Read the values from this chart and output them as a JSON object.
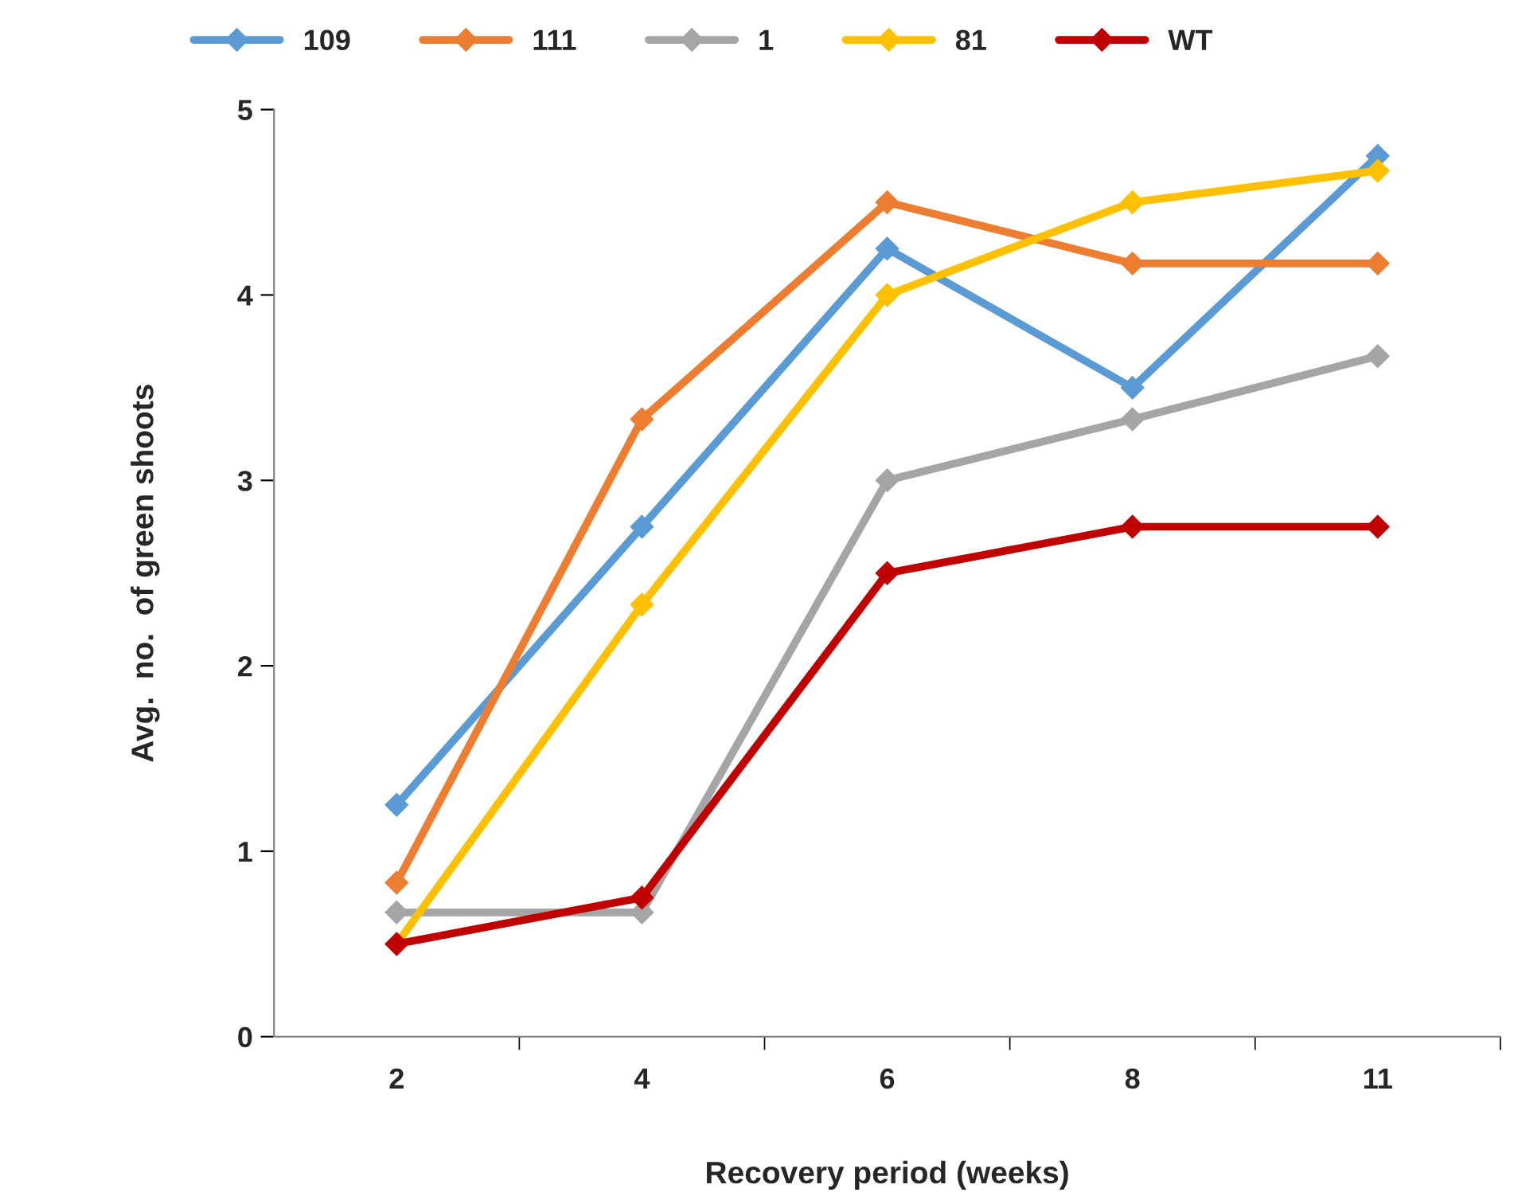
{
  "chart_data": {
    "type": "line",
    "xlabel": "Recovery period (weeks)",
    "ylabel": "Avg.  no.  of green shoots",
    "categories": [
      "2",
      "4",
      "6",
      "8",
      "11"
    ],
    "series": [
      {
        "name": "109",
        "color": "#5b9bd5",
        "values": [
          1.25,
          2.75,
          4.25,
          3.5,
          4.75
        ]
      },
      {
        "name": "111",
        "color": "#ed7d31",
        "values": [
          0.83,
          3.33,
          4.5,
          4.17,
          4.17
        ]
      },
      {
        "name": "1",
        "color": "#a5a5a5",
        "values": [
          0.67,
          0.67,
          3.0,
          3.33,
          3.67
        ]
      },
      {
        "name": "81",
        "color": "#ffc000",
        "values": [
          0.5,
          2.33,
          4.0,
          4.5,
          4.67
        ]
      },
      {
        "name": "WT",
        "color": "#c00000",
        "values": [
          0.5,
          0.75,
          2.5,
          2.75,
          2.75
        ]
      }
    ],
    "ylim": [
      0,
      5
    ],
    "yticks": [
      0,
      1,
      2,
      3,
      4,
      5
    ],
    "grid": false,
    "legend": "top",
    "marker": "diamond",
    "line_style": "solid"
  }
}
